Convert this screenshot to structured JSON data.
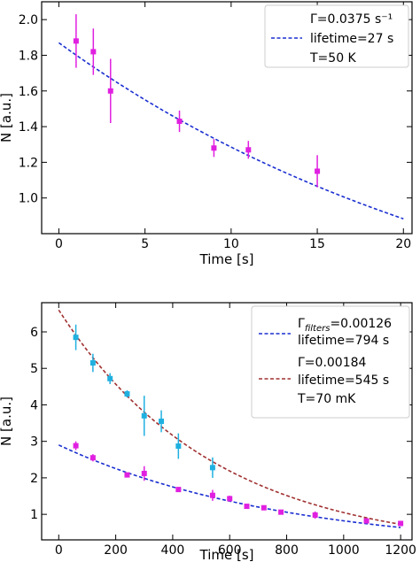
{
  "chart_data": [
    {
      "type": "scatter",
      "xlabel": "Time [s]",
      "ylabel": "N [a.u.]",
      "xlim": [
        -1,
        20.5
      ],
      "ylim": [
        0.8,
        2.1
      ],
      "xticks": [
        0,
        5,
        10,
        15,
        20
      ],
      "yticks": [
        1.0,
        1.2,
        1.4,
        1.6,
        1.8,
        2.0
      ],
      "xtick_labels": [
        "0",
        "5",
        "10",
        "15",
        "20"
      ],
      "ytick_labels": [
        "1.0",
        "1.2",
        "1.4",
        "1.6",
        "1.8",
        "2.0"
      ],
      "grid": false,
      "legend_position": "top-right",
      "series": [
        {
          "kind": "points",
          "color": "#e020e0",
          "x": [
            1,
            2,
            3,
            7,
            9,
            11,
            15
          ],
          "y": [
            1.88,
            1.82,
            1.6,
            1.43,
            1.28,
            1.27,
            1.15
          ],
          "yerr": [
            0.15,
            0.13,
            0.18,
            0.06,
            0.05,
            0.05,
            0.09
          ]
        },
        {
          "kind": "fit",
          "color": "#1a2fd0",
          "style": "dashed",
          "amplitude": 1.87,
          "gamma": 0.0375,
          "x_range": [
            0,
            20
          ]
        }
      ],
      "legend": {
        "lines": [
          "Γ=0.0375 s⁻¹",
          "lifetime=27 s",
          "T=50 K"
        ]
      }
    },
    {
      "type": "scatter",
      "xlabel": "Time [s]",
      "ylabel": "N [a.u.]",
      "xlim": [
        -60,
        1240
      ],
      "ylim": [
        0.3,
        6.8
      ],
      "xticks": [
        0,
        200,
        400,
        600,
        800,
        1000,
        1200
      ],
      "yticks": [
        1,
        2,
        3,
        4,
        5,
        6
      ],
      "xtick_labels": [
        "0",
        "200",
        "400",
        "600",
        "800",
        "1000",
        "1200"
      ],
      "ytick_labels": [
        "1",
        "2",
        "3",
        "4",
        "5",
        "6"
      ],
      "grid": false,
      "legend_position": "top-right",
      "series": [
        {
          "kind": "points",
          "color": "#20b0e0",
          "x": [
            60,
            120,
            180,
            240,
            300,
            360,
            420,
            540
          ],
          "y": [
            5.85,
            5.15,
            4.72,
            4.3,
            3.7,
            3.55,
            2.87,
            2.28
          ],
          "yerr": [
            0.35,
            0.25,
            0.15,
            0.1,
            0.55,
            0.3,
            0.35,
            0.28
          ]
        },
        {
          "kind": "points",
          "color": "#e020e0",
          "x": [
            60,
            120,
            240,
            300,
            420,
            540,
            600,
            660,
            720,
            780,
            900,
            1080,
            1200
          ],
          "y": [
            2.88,
            2.55,
            2.08,
            2.12,
            1.68,
            1.52,
            1.43,
            1.22,
            1.18,
            1.06,
            0.98,
            0.82,
            0.75
          ],
          "yerr": [
            0.12,
            0.1,
            0.06,
            0.2,
            0.05,
            0.15,
            0.08,
            0.06,
            0.05,
            0.05,
            0.1,
            0.06,
            0.06
          ]
        },
        {
          "kind": "fit",
          "color": "#1a2fd0",
          "style": "dashed",
          "amplitude": 2.9,
          "gamma": 0.00126,
          "x_range": [
            0,
            1200
          ]
        },
        {
          "kind": "fit",
          "color": "#a03030",
          "style": "dashed",
          "amplitude": 6.6,
          "gamma": 0.00184,
          "x_range": [
            0,
            1200
          ]
        }
      ],
      "legend": {
        "entry1_gamma_symbol": "Γ",
        "entry1_gamma_sub": "filters",
        "entry1_gamma_value": "=0.00126",
        "entry1_line2": "lifetime=794 s",
        "entry2_line1": "Γ=0.00184",
        "entry2_line2": "lifetime=545 s",
        "entry2_line3": "T=70 mK"
      }
    }
  ]
}
